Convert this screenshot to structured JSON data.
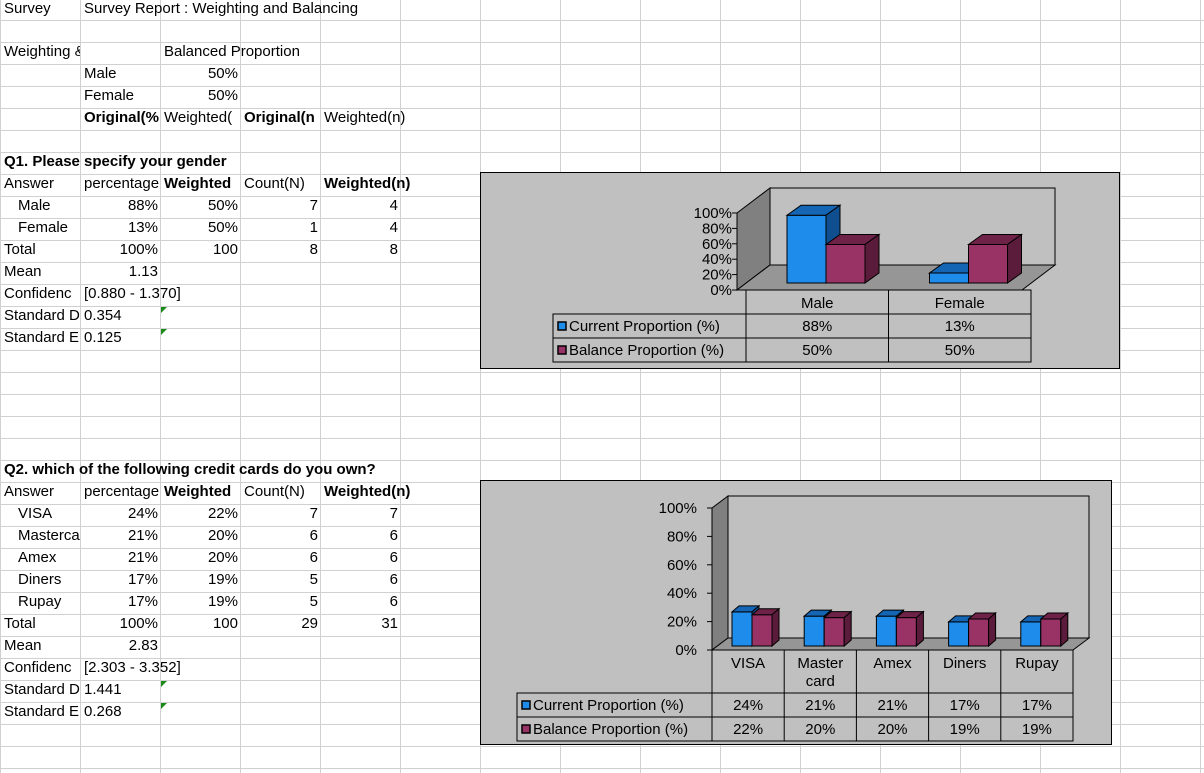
{
  "header": {
    "sheet": "Survey",
    "title": "Survey Report : Weighting and Balancing"
  },
  "weighting": {
    "label": "Weighting & Balancin",
    "balanced_label": "Balanced Proportion",
    "rows": [
      {
        "label": "Male",
        "value": "50%"
      },
      {
        "label": "Female",
        "value": "50%"
      }
    ],
    "columns": [
      "Original(%",
      "Weighted(",
      "Original(n",
      "Weighted(n)"
    ]
  },
  "q1": {
    "question": "Q1. Please specify your gender",
    "headers": [
      "Answer",
      "percentage",
      "Weighted",
      "Count(N)",
      "Weighted(n)"
    ],
    "answers": [
      [
        "Male",
        "88%",
        "50%",
        "7",
        "4"
      ],
      [
        "Female",
        "13%",
        "50%",
        "1",
        "4"
      ]
    ],
    "total": [
      "Total",
      "100%",
      "100",
      "8",
      "8"
    ],
    "mean": [
      "Mean",
      "1.13"
    ],
    "confidence": [
      "Confidenc",
      "[0.880 - 1.370]"
    ],
    "std_dev": [
      "Standard D",
      "0.354"
    ],
    "std_err": [
      "Standard E",
      "0.125"
    ]
  },
  "q2": {
    "question": "Q2. which of the following credit cards do you own?",
    "headers": [
      "Answer",
      "percentage",
      "Weighted",
      "Count(N)",
      "Weighted(n)"
    ],
    "answers": [
      [
        "VISA",
        "24%",
        "22%",
        "7",
        "7"
      ],
      [
        "Masterca",
        "21%",
        "20%",
        "6",
        "6"
      ],
      [
        "Amex",
        "21%",
        "20%",
        "6",
        "6"
      ],
      [
        "Diners",
        "17%",
        "19%",
        "5",
        "6"
      ],
      [
        "Rupay",
        "17%",
        "19%",
        "5",
        "6"
      ]
    ],
    "total": [
      "Total",
      "100%",
      "100",
      "29",
      "31"
    ],
    "mean": [
      "Mean",
      "2.83"
    ],
    "confidence": [
      "Confidenc",
      "[2.303 - 3.352]"
    ],
    "std_dev": [
      "Standard D",
      "1.441"
    ],
    "std_err": [
      "Standard E",
      "0.268"
    ]
  },
  "colors": {
    "current": "#1e8ceb",
    "balance": "#993366",
    "chart_bg": "#c0c0c0",
    "note_marker": "#1a8a1a"
  },
  "chart_data": [
    {
      "type": "bar",
      "style": "3d clustered column with data table",
      "categories": [
        "Male",
        "Female"
      ],
      "series": [
        {
          "name": "Current Proportion (%)",
          "values": [
            88,
            13
          ],
          "labels": [
            "88%",
            "13%"
          ]
        },
        {
          "name": "Balance Proportion (%)",
          "values": [
            50,
            50
          ],
          "labels": [
            "50%",
            "50%"
          ]
        }
      ],
      "yticks": [
        "0%",
        "20%",
        "40%",
        "60%",
        "80%",
        "100%"
      ],
      "ylim": [
        0,
        100
      ],
      "grid": false,
      "legend": "data-table-left"
    },
    {
      "type": "bar",
      "style": "3d clustered column with data table",
      "categories": [
        "VISA",
        "Master card",
        "Amex",
        "Diners",
        "Rupay"
      ],
      "series": [
        {
          "name": "Current Proportion (%)",
          "values": [
            24,
            21,
            21,
            17,
            17
          ],
          "labels": [
            "24%",
            "21%",
            "21%",
            "17%",
            "17%"
          ]
        },
        {
          "name": "Balance Proportion (%)",
          "values": [
            22,
            20,
            20,
            19,
            19
          ],
          "labels": [
            "22%",
            "20%",
            "20%",
            "19%",
            "19%"
          ]
        }
      ],
      "yticks": [
        "0%",
        "20%",
        "40%",
        "60%",
        "80%",
        "100%"
      ],
      "ylim": [
        0,
        100
      ],
      "grid": false,
      "legend": "data-table-left"
    }
  ]
}
